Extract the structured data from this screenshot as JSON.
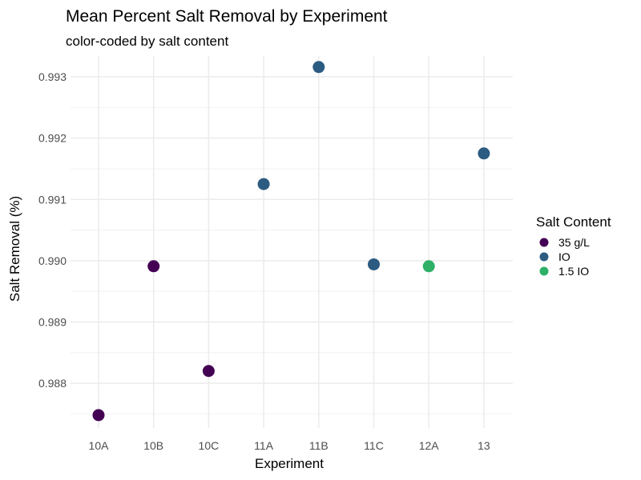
{
  "chart_data": {
    "type": "scatter",
    "title": "Mean Percent Salt Removal by Experiment",
    "subtitle": "color-coded by salt content",
    "xlabel": "Experiment",
    "ylabel": "Salt Removal (%)",
    "categories": [
      "10A",
      "10B",
      "10C",
      "11A",
      "11B",
      "11C",
      "12A",
      "13"
    ],
    "ylim": [
      0.98727,
      0.99334
    ],
    "yticks": [
      0.988,
      0.989,
      0.99,
      0.991,
      0.992,
      0.993
    ],
    "ytick_labels": [
      "0.988",
      "0.989",
      "0.990",
      "0.991",
      "0.992",
      "0.993"
    ],
    "grid": true,
    "legend": {
      "title": "Salt Content",
      "placement": "right"
    },
    "series": [
      {
        "name": "35 g/L",
        "color": "#440154",
        "points": [
          {
            "x": "10A",
            "y": 0.98748
          },
          {
            "x": "10B",
            "y": 0.98991
          },
          {
            "x": "10C",
            "y": 0.9882
          }
        ]
      },
      {
        "name": "IO",
        "color": "#2c5b82",
        "points": [
          {
            "x": "11A",
            "y": 0.99125
          },
          {
            "x": "11B",
            "y": 0.99316
          },
          {
            "x": "11C",
            "y": 0.98994
          },
          {
            "x": "13",
            "y": 0.99175
          }
        ]
      },
      {
        "name": "1.5 IO",
        "color": "#2eb067",
        "points": [
          {
            "x": "12A",
            "y": 0.98991
          }
        ]
      }
    ]
  }
}
